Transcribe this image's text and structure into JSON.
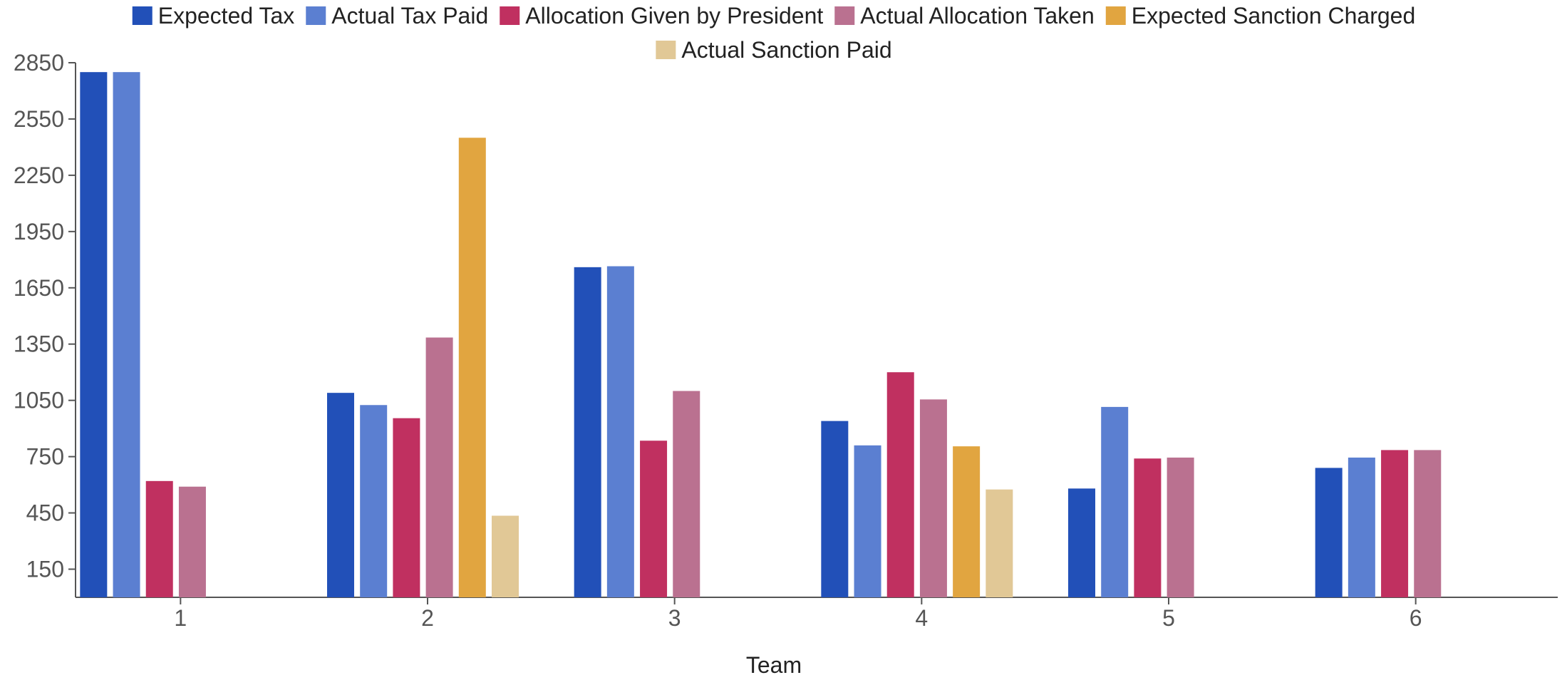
{
  "chart_data": {
    "type": "bar",
    "title": "",
    "xlabel": "Team",
    "ylabel": "",
    "categories": [
      "1",
      "2",
      "3",
      "4",
      "5",
      "6"
    ],
    "yticks": [
      150,
      450,
      750,
      1050,
      1350,
      1650,
      1950,
      2250,
      2550,
      2850
    ],
    "ylim": [
      0,
      2850
    ],
    "grid": false,
    "legend_position": "top-center",
    "series": [
      {
        "name": "Expected Tax",
        "color": "#2250B8",
        "values": [
          2800,
          1090,
          1760,
          940,
          580,
          690
        ]
      },
      {
        "name": "Actual Tax Paid",
        "color": "#5B7FD1",
        "values": [
          2800,
          1025,
          1765,
          810,
          1015,
          745
        ]
      },
      {
        "name": "Allocation Given by President",
        "color": "#C03060",
        "values": [
          620,
          955,
          835,
          1200,
          740,
          785
        ]
      },
      {
        "name": "Actual Allocation Taken",
        "color": "#BA7190",
        "values": [
          590,
          1385,
          1100,
          1055,
          745,
          785
        ]
      },
      {
        "name": "Expected Sanction Charged",
        "color": "#E1A540",
        "values": [
          0,
          2450,
          0,
          805,
          0,
          0
        ]
      },
      {
        "name": "Actual Sanction Paid",
        "color": "#E1C896",
        "values": [
          0,
          435,
          0,
          575,
          0,
          0
        ]
      }
    ]
  }
}
